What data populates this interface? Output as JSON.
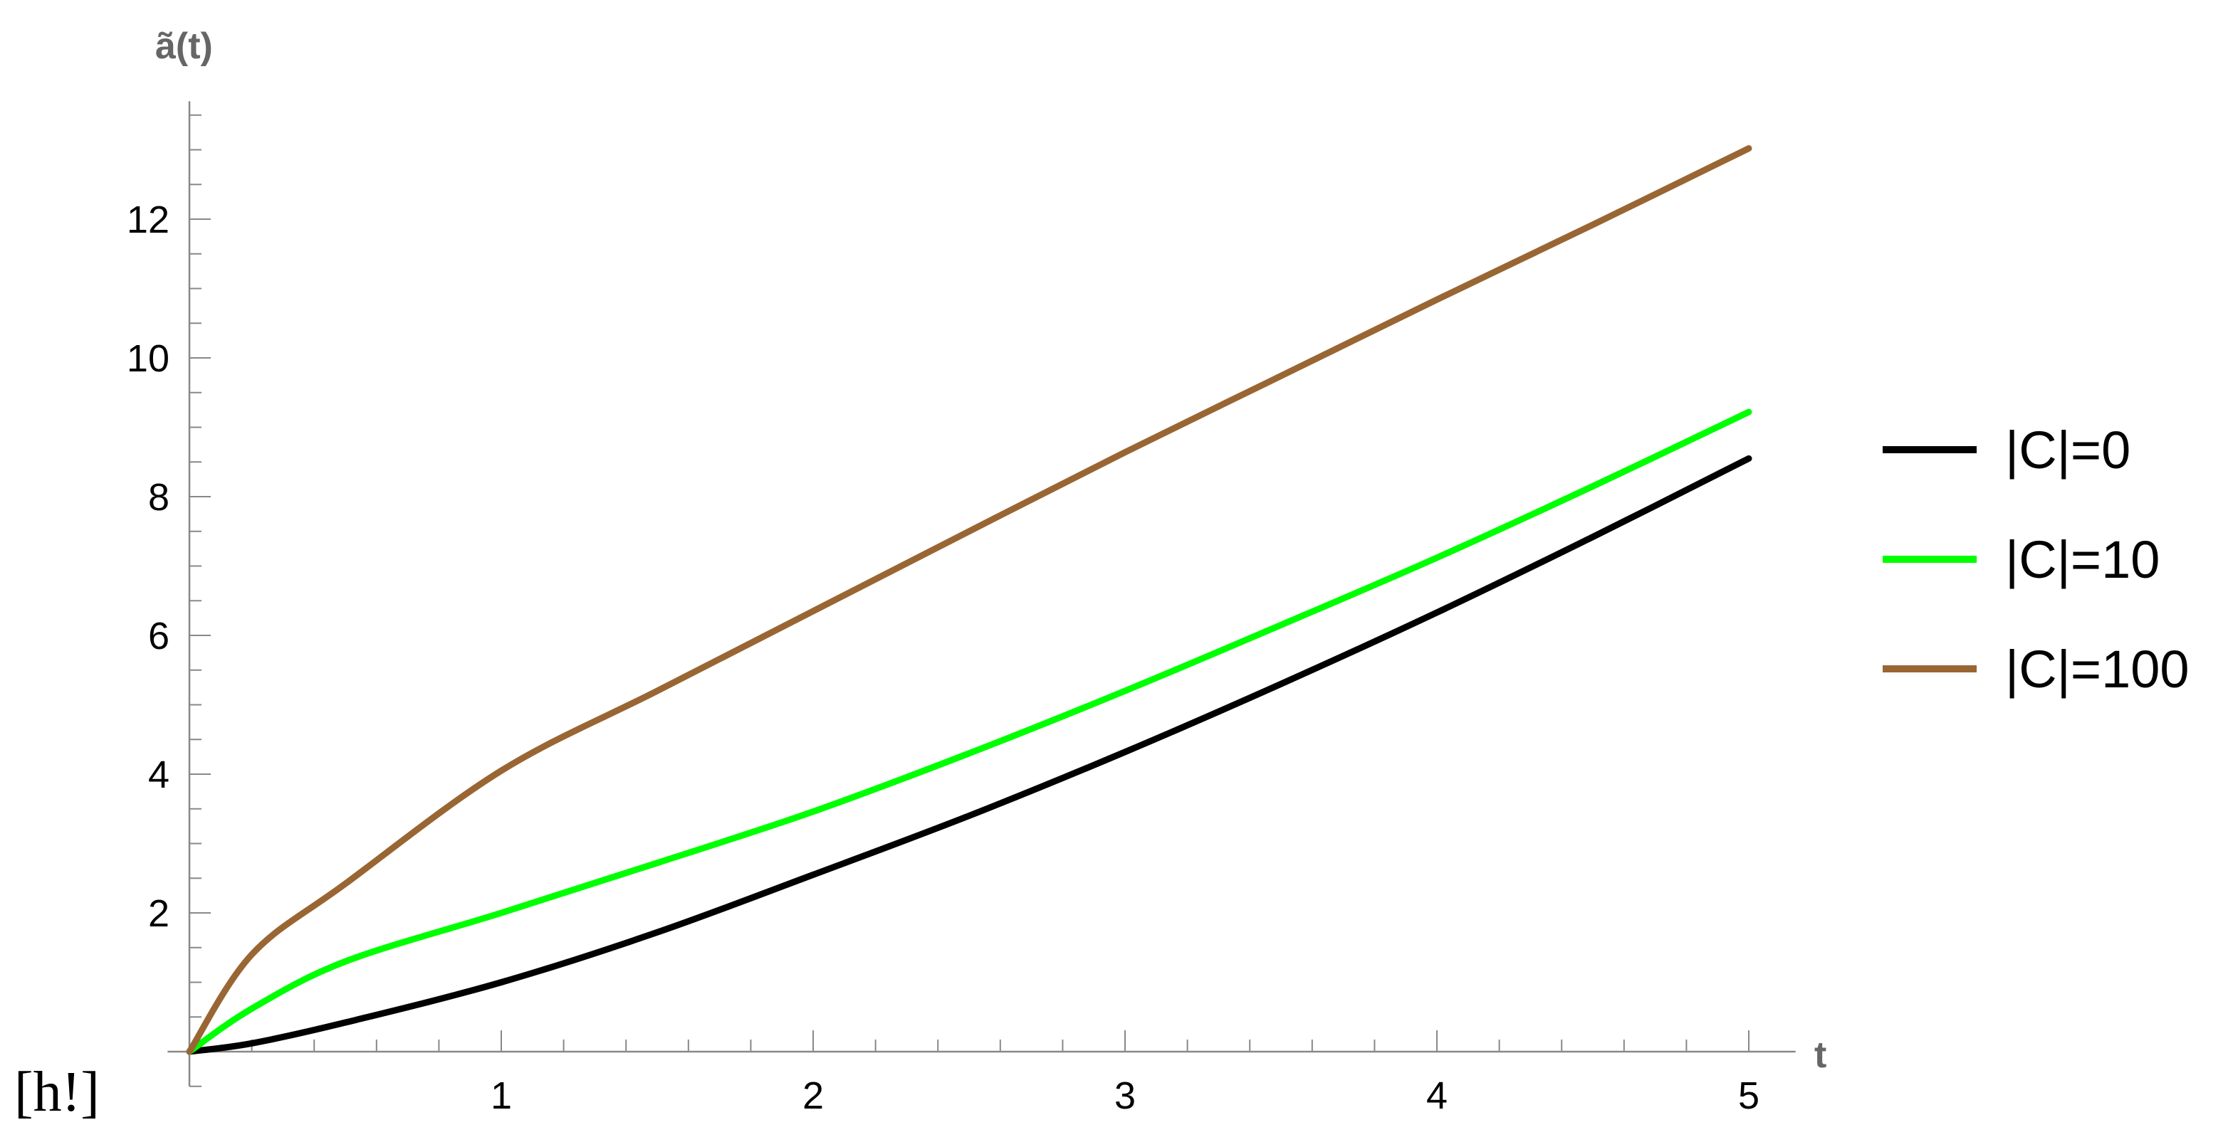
{
  "chart_data": {
    "type": "line",
    "title": "",
    "xlabel": "t",
    "ylabel": "ã(t)",
    "xlim": [
      0,
      5.15
    ],
    "ylim": [
      -0.5,
      13.7
    ],
    "x_ticks": [
      "1",
      "2",
      "3",
      "4",
      "5"
    ],
    "y_ticks": [
      "2",
      "4",
      "6",
      "8",
      "10",
      "12"
    ],
    "grid": false,
    "legend_position": "right",
    "x": [
      0,
      0.2,
      0.5,
      1,
      1.5,
      2,
      2.5,
      3,
      3.5,
      4,
      4.5,
      5
    ],
    "series": [
      {
        "name": "|C|=0",
        "color": "#000000",
        "values": [
          0,
          0.12,
          0.42,
          1.0,
          1.72,
          2.55,
          3.4,
          4.32,
          5.3,
          6.33,
          7.42,
          8.55
        ]
      },
      {
        "name": "|C|=10",
        "color": "#00ff00",
        "values": [
          0,
          0.62,
          1.3,
          2.0,
          2.72,
          3.46,
          4.3,
          5.2,
          6.15,
          7.12,
          8.15,
          9.22
        ]
      },
      {
        "name": "|C|=100",
        "color": "#996633",
        "values": [
          0,
          1.4,
          2.42,
          4.05,
          5.2,
          6.35,
          7.5,
          8.64,
          9.74,
          10.84,
          11.92,
          13.02
        ]
      }
    ]
  },
  "annotation": "[h!]"
}
